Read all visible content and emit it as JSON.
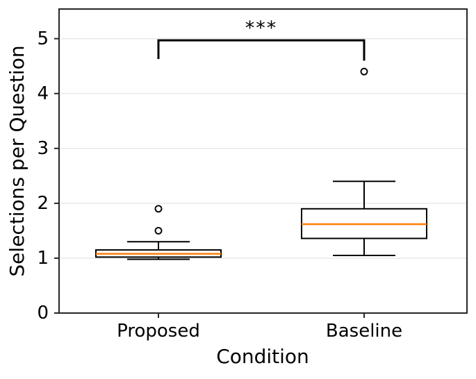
{
  "chart_data": {
    "type": "boxplot",
    "title": "",
    "xlabel": "Condition",
    "ylabel": "Selections per Question",
    "categories": [
      "Proposed",
      "Baseline"
    ],
    "yticks": [
      0,
      1,
      2,
      3,
      4,
      5
    ],
    "ylim": [
      0,
      5.54
    ],
    "grid": "horizontal-light",
    "legend": "none",
    "series": [
      {
        "name": "Proposed",
        "whisker_low": 0.98,
        "q1": 1.02,
        "median": 1.08,
        "q3": 1.15,
        "whisker_high": 1.3,
        "outliers": [
          1.5,
          1.9
        ]
      },
      {
        "name": "Baseline",
        "whisker_low": 1.05,
        "q1": 1.36,
        "median": 1.62,
        "q3": 1.9,
        "whisker_high": 2.4,
        "outliers": [
          4.4
        ]
      }
    ],
    "significance": {
      "label": "***",
      "bar_y": 4.97,
      "left_end_y": 4.63,
      "right_end_y": 4.6
    },
    "colors": {
      "median": "#ff7f0e",
      "box_edge": "#000000",
      "grid": "#e8e8e8",
      "spine": "#262626",
      "text": "#000000"
    }
  }
}
